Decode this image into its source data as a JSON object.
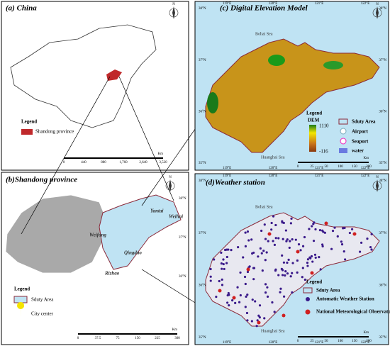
{
  "panels": {
    "a": {
      "title": "(a) China",
      "legend": {
        "title": "Legend",
        "items": [
          "Shandong province"
        ]
      },
      "scale": {
        "ticks": [
          "0",
          "440",
          "880",
          "1,760",
          "2,640",
          "3,520"
        ],
        "unit": "Km"
      }
    },
    "b": {
      "title": "(b)Shandong province",
      "cities": [
        "Yantai",
        "Weihai",
        "Weifang",
        "Qingdao",
        "Rizhao"
      ],
      "legend": {
        "title": "Legend",
        "items": [
          "Sduty Area",
          "City center"
        ]
      },
      "scale": {
        "ticks": [
          "0",
          "37.5",
          "75",
          "150",
          "225",
          "300"
        ],
        "unit": "Km"
      },
      "lat": [
        "38°N",
        "37°N",
        "36°N"
      ]
    },
    "c": {
      "title": "(c) Digital Elevation Model",
      "seas": [
        "Bohai Sea",
        "Huanghai Sea"
      ],
      "legend": {
        "title": "Legend",
        "dem": "DEM",
        "dem_max": "1110",
        "dem_min": "-116",
        "items": [
          "Sduty Area",
          "Airport",
          "Seaport",
          "water"
        ]
      },
      "scale": {
        "ticks": [
          "0",
          "25",
          "50",
          "100",
          "150",
          "200"
        ],
        "unit": "Km"
      },
      "lon": [
        "119°E",
        "120°E",
        "121°E",
        "122°E"
      ],
      "lat": [
        "38°N",
        "37°N",
        "36°N",
        "35°N"
      ]
    },
    "d": {
      "title": "(d)Weather station",
      "seas": [
        "Bohai Sea",
        "Huanghai Sea"
      ],
      "legend": {
        "title": "Legend",
        "items": [
          "Sduty Area",
          "Automatic Weather Station",
          "National Meteorological Observatory"
        ]
      },
      "scale": {
        "ticks": [
          "0",
          "25",
          "50",
          "100",
          "150",
          "200"
        ],
        "unit": "Km"
      },
      "lon": [
        "119°E",
        "120°E",
        "121°E",
        "122°E"
      ],
      "lat": [
        "38°N",
        "37°N",
        "36°N",
        "35°N"
      ]
    }
  },
  "compass": "N"
}
